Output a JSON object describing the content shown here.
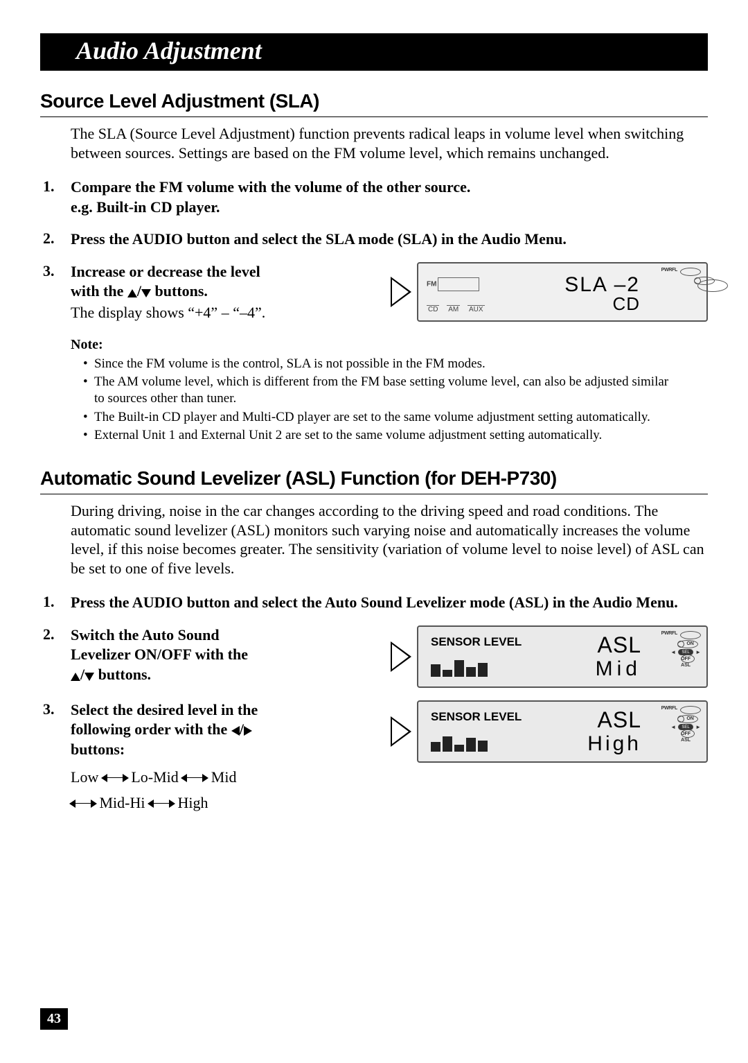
{
  "page_number": "43",
  "title_bar": "Audio Adjustment",
  "section1": {
    "heading": "Source Level Adjustment (SLA)",
    "intro": "The SLA (Source Level Adjustment) function prevents radical leaps in volume level when switching between sources. Settings are based on the FM volume level, which remains unchanged.",
    "step1_l1": "Compare the FM volume with the volume of the other source.",
    "step1_l2": "e.g. Built-in CD player.",
    "step2": "Press the AUDIO button and select the SLA mode (SLA) in the Audio Menu.",
    "step3_l1": "Increase or decrease the level",
    "step3_l2_pre": "with the ",
    "step3_l2_post": " buttons.",
    "step3_sub": "The display shows “+4” – “–4”.",
    "note_label": "Note:",
    "notes": [
      "Since the FM volume is the control, SLA is not possible in the FM modes.",
      "The AM volume level, which is different from the FM base setting volume level, can also be adjusted similar to sources other than tuner.",
      "The Built-in CD player and Multi-CD player are set to the same volume adjustment setting automatically.",
      "External Unit 1 and External Unit 2 are set to the same volume adjustment setting automatically."
    ],
    "lcd": {
      "fm_label": "FM",
      "src_labels": [
        "CD",
        "AM",
        "AUX"
      ],
      "main": "SLA  –2",
      "sub": "CD",
      "pwr": "PWRFL"
    }
  },
  "section2": {
    "heading": "Automatic Sound Levelizer (ASL) Function (for DEH-P730)",
    "intro": "During driving, noise in the car changes according to the driving speed and road conditions. The automatic sound levelizer (ASL) monitors such varying noise and automatically increases the volume level, if this noise becomes greater. The sensitivity (variation of volume level to noise level) of ASL can be set to one of five levels.",
    "step1": "Press the AUDIO button and select the Auto Sound Levelizer mode (ASL) in the Audio Menu.",
    "step2_l1": "Switch the Auto Sound",
    "step2_l2": "Levelizer ON/OFF with the",
    "step2_l3_post": " buttons.",
    "step3_l1": "Select the desired level in the",
    "step3_l2_pre": "following order with the ",
    "step3_l3": "buttons:",
    "levels": [
      "Low",
      "Lo-Mid",
      "Mid",
      "Mid-Hi",
      "High"
    ],
    "lcd1": {
      "sensor": "SENSOR LEVEL",
      "asl": "ASL",
      "level": "Mid",
      "pwr": "PWRFL",
      "sel": "SEL",
      "on": "ON",
      "off": "OFF",
      "asl_small": "ASL",
      "spectrum_heights": [
        18,
        10,
        24,
        14,
        20
      ]
    },
    "lcd2": {
      "sensor": "SENSOR LEVEL",
      "asl": "ASL",
      "level": "High",
      "pwr": "PWRFL",
      "sel": "SEL",
      "on": "ON",
      "off": "OFF",
      "asl_small": "ASL",
      "spectrum_heights": [
        14,
        22,
        10,
        20,
        16
      ]
    }
  }
}
